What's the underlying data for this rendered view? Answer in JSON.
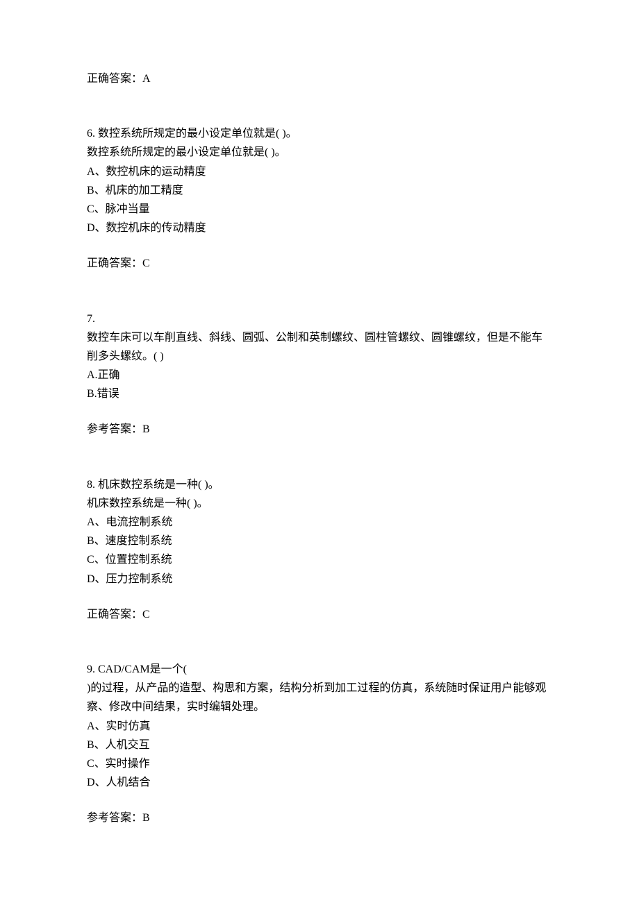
{
  "q5": {
    "answer_label": "正确答案：A"
  },
  "q6": {
    "number_and_title": "6. 数控系统所规定的最小设定单位就是( )。",
    "repeat_title": "数控系统所规定的最小设定单位就是( )。",
    "option_a": "A、数控机床的运动精度",
    "option_b": "B、机床的加工精度",
    "option_c": "C、脉冲当量",
    "option_d": "D、数控机床的传动精度",
    "answer_label": "正确答案：C"
  },
  "q7": {
    "number": "7.",
    "body": "数控车床可以车削直线、斜线、圆弧、公制和英制螺纹、圆柱管螺纹、圆锥螺纹，但是不能车削多头螺纹。(  )",
    "option_a": "A.正确",
    "option_b": "B.错误",
    "answer_label": "参考答案：B"
  },
  "q8": {
    "number_and_title": "8. 机床数控系统是一种( )。",
    "repeat_title": "机床数控系统是一种( )。",
    "option_a": "A、电流控制系统",
    "option_b": "B、速度控制系统",
    "option_c": "C、位置控制系统",
    "option_d": "D、压力控制系统",
    "answer_label": "正确答案：C"
  },
  "q9": {
    "line1": "9. CAD/CAM是一个(",
    "line2": ")的过程，从产品的造型、构思和方案，结构分析到加工过程的仿真，系统随时保证用户能够观察、修改中间结果，实时编辑处理。",
    "option_a": "A、实时仿真",
    "option_b": "B、人机交互",
    "option_c": "C、实时操作",
    "option_d": "D、人机结合",
    "answer_label": "参考答案：B"
  }
}
